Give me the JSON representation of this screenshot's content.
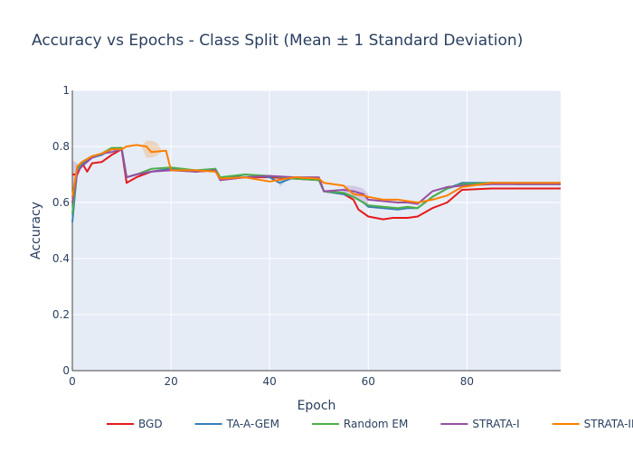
{
  "chart_data": {
    "type": "line",
    "title": "Accuracy vs Epochs - Class Split (Mean ± 1 Standard Deviation)",
    "xlabel": "Epoch",
    "ylabel": "Accuracy",
    "xlim": [
      0,
      99
    ],
    "ylim": [
      0,
      1
    ],
    "x_ticks": [
      0,
      20,
      40,
      60,
      80
    ],
    "y_ticks": [
      0,
      0.2,
      0.4,
      0.6,
      0.8,
      1
    ],
    "grid": true,
    "legend_position": "bottom-center",
    "background_color": "#e5ecf6",
    "series": [
      {
        "name": "BGD",
        "color": "#e41a1c",
        "points": [
          [
            0,
            0.7
          ],
          [
            1,
            0.7
          ],
          [
            2,
            0.74
          ],
          [
            3,
            0.71
          ],
          [
            4,
            0.74
          ],
          [
            6,
            0.745
          ],
          [
            8,
            0.77
          ],
          [
            10,
            0.79
          ],
          [
            11,
            0.67
          ],
          [
            13,
            0.69
          ],
          [
            16,
            0.71
          ],
          [
            20,
            0.72
          ],
          [
            25,
            0.71
          ],
          [
            29,
            0.715
          ],
          [
            30,
            0.68
          ],
          [
            35,
            0.69
          ],
          [
            40,
            0.69
          ],
          [
            45,
            0.685
          ],
          [
            50,
            0.68
          ],
          [
            51,
            0.64
          ],
          [
            55,
            0.63
          ],
          [
            57,
            0.61
          ],
          [
            58,
            0.575
          ],
          [
            60,
            0.55
          ],
          [
            63,
            0.54
          ],
          [
            65,
            0.545
          ],
          [
            68,
            0.545
          ],
          [
            70,
            0.55
          ],
          [
            73,
            0.58
          ],
          [
            76,
            0.6
          ],
          [
            79,
            0.645
          ],
          [
            85,
            0.65
          ],
          [
            90,
            0.65
          ],
          [
            95,
            0.65
          ],
          [
            99,
            0.65
          ]
        ]
      },
      {
        "name": "TA-A-GEM",
        "color": "#377eb8",
        "points": [
          [
            0,
            0.53
          ],
          [
            1,
            0.72
          ],
          [
            2,
            0.74
          ],
          [
            4,
            0.76
          ],
          [
            6,
            0.77
          ],
          [
            8,
            0.79
          ],
          [
            10,
            0.795
          ],
          [
            11,
            0.69
          ],
          [
            13,
            0.7
          ],
          [
            16,
            0.71
          ],
          [
            20,
            0.72
          ],
          [
            25,
            0.71
          ],
          [
            29,
            0.72
          ],
          [
            30,
            0.68
          ],
          [
            35,
            0.7
          ],
          [
            40,
            0.69
          ],
          [
            42,
            0.67
          ],
          [
            45,
            0.69
          ],
          [
            50,
            0.68
          ],
          [
            51,
            0.64
          ],
          [
            55,
            0.63
          ],
          [
            57,
            0.62
          ],
          [
            59,
            0.6
          ],
          [
            60,
            0.585
          ],
          [
            63,
            0.58
          ],
          [
            66,
            0.575
          ],
          [
            68,
            0.58
          ],
          [
            70,
            0.58
          ],
          [
            73,
            0.62
          ],
          [
            76,
            0.65
          ],
          [
            79,
            0.67
          ],
          [
            85,
            0.67
          ],
          [
            90,
            0.67
          ],
          [
            95,
            0.67
          ],
          [
            99,
            0.67
          ]
        ]
      },
      {
        "name": "Random EM",
        "color": "#4daf4a",
        "points": [
          [
            0,
            0.56
          ],
          [
            1,
            0.72
          ],
          [
            2,
            0.745
          ],
          [
            4,
            0.765
          ],
          [
            6,
            0.775
          ],
          [
            8,
            0.795
          ],
          [
            10,
            0.795
          ],
          [
            11,
            0.69
          ],
          [
            13,
            0.7
          ],
          [
            16,
            0.72
          ],
          [
            20,
            0.725
          ],
          [
            25,
            0.715
          ],
          [
            29,
            0.72
          ],
          [
            30,
            0.69
          ],
          [
            35,
            0.7
          ],
          [
            40,
            0.695
          ],
          [
            45,
            0.685
          ],
          [
            50,
            0.68
          ],
          [
            51,
            0.64
          ],
          [
            55,
            0.635
          ],
          [
            57,
            0.62
          ],
          [
            59,
            0.6
          ],
          [
            60,
            0.59
          ],
          [
            63,
            0.585
          ],
          [
            66,
            0.58
          ],
          [
            68,
            0.585
          ],
          [
            70,
            0.58
          ],
          [
            73,
            0.62
          ],
          [
            76,
            0.65
          ],
          [
            79,
            0.665
          ],
          [
            85,
            0.67
          ],
          [
            90,
            0.665
          ],
          [
            95,
            0.665
          ],
          [
            99,
            0.665
          ]
        ]
      },
      {
        "name": "STRATA-I",
        "color": "#984ea3",
        "points": [
          [
            0,
            0.6
          ],
          [
            1,
            0.71
          ],
          [
            2,
            0.73
          ],
          [
            4,
            0.76
          ],
          [
            6,
            0.775
          ],
          [
            8,
            0.78
          ],
          [
            10,
            0.79
          ],
          [
            11,
            0.69
          ],
          [
            13,
            0.7
          ],
          [
            16,
            0.71
          ],
          [
            20,
            0.715
          ],
          [
            25,
            0.71
          ],
          [
            29,
            0.715
          ],
          [
            30,
            0.68
          ],
          [
            35,
            0.69
          ],
          [
            40,
            0.695
          ],
          [
            45,
            0.69
          ],
          [
            50,
            0.69
          ],
          [
            51,
            0.64
          ],
          [
            55,
            0.645
          ],
          [
            57,
            0.64
          ],
          [
            59,
            0.63
          ],
          [
            60,
            0.61
          ],
          [
            63,
            0.605
          ],
          [
            66,
            0.6
          ],
          [
            68,
            0.6
          ],
          [
            70,
            0.595
          ],
          [
            73,
            0.64
          ],
          [
            76,
            0.655
          ],
          [
            79,
            0.66
          ],
          [
            85,
            0.665
          ],
          [
            90,
            0.665
          ],
          [
            95,
            0.665
          ],
          [
            99,
            0.665
          ]
        ]
      },
      {
        "name": "STRATA-II",
        "color": "#ff7f00",
        "points": [
          [
            0,
            0.62
          ],
          [
            1,
            0.73
          ],
          [
            2,
            0.745
          ],
          [
            4,
            0.765
          ],
          [
            6,
            0.775
          ],
          [
            8,
            0.79
          ],
          [
            10,
            0.79
          ],
          [
            11,
            0.8
          ],
          [
            13,
            0.805
          ],
          [
            15,
            0.8
          ],
          [
            16,
            0.78
          ],
          [
            19,
            0.785
          ],
          [
            20,
            0.715
          ],
          [
            25,
            0.715
          ],
          [
            29,
            0.71
          ],
          [
            30,
            0.685
          ],
          [
            35,
            0.69
          ],
          [
            40,
            0.675
          ],
          [
            45,
            0.69
          ],
          [
            50,
            0.685
          ],
          [
            51,
            0.67
          ],
          [
            55,
            0.66
          ],
          [
            57,
            0.63
          ],
          [
            59,
            0.625
          ],
          [
            60,
            0.62
          ],
          [
            63,
            0.61
          ],
          [
            66,
            0.61
          ],
          [
            68,
            0.605
          ],
          [
            70,
            0.6
          ],
          [
            73,
            0.61
          ],
          [
            76,
            0.625
          ],
          [
            79,
            0.655
          ],
          [
            85,
            0.67
          ],
          [
            90,
            0.67
          ],
          [
            95,
            0.67
          ],
          [
            99,
            0.67
          ]
        ]
      }
    ],
    "std_bands": [
      {
        "series": "STRATA-II",
        "points": [
          [
            14,
            0.8,
            0.8
          ],
          [
            15,
            0.76,
            0.82
          ],
          [
            16,
            0.76,
            0.82
          ],
          [
            17,
            0.765,
            0.815
          ],
          [
            18,
            0.78,
            0.79
          ]
        ]
      },
      {
        "series": "STRATA-I",
        "points": [
          [
            0,
            0.52,
            0.75
          ],
          [
            1,
            0.68,
            0.74
          ]
        ]
      },
      {
        "series": "TA-A-GEM",
        "points": [
          [
            42,
            0.655,
            0.69
          ],
          [
            43,
            0.67,
            0.69
          ]
        ]
      },
      {
        "series": "STRATA-I",
        "points": [
          [
            55,
            0.63,
            0.66
          ],
          [
            57,
            0.62,
            0.66
          ],
          [
            59,
            0.6,
            0.65
          ],
          [
            60,
            0.59,
            0.63
          ]
        ]
      }
    ]
  }
}
